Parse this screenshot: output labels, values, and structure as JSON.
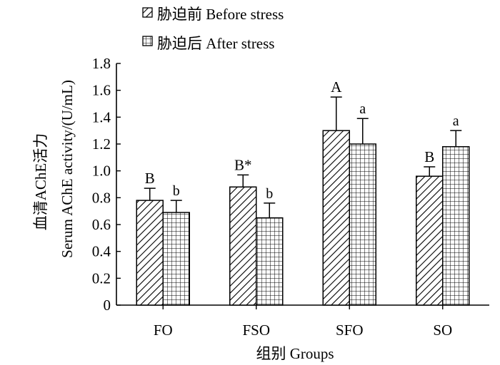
{
  "chart_data": {
    "type": "bar",
    "categories": [
      "FO",
      "FSO",
      "SFO",
      "SO"
    ],
    "series": [
      {
        "name": "胁迫前 Before stress",
        "values": [
          0.78,
          0.88,
          1.3,
          0.96
        ],
        "errors": [
          0.09,
          0.09,
          0.25,
          0.07
        ],
        "labels": [
          "B",
          "B*",
          "A",
          "B"
        ],
        "pattern": "diagonal-hatch"
      },
      {
        "name": "胁迫后 After stress",
        "values": [
          0.69,
          0.65,
          1.2,
          1.18
        ],
        "errors": [
          0.09,
          0.11,
          0.19,
          0.12
        ],
        "labels": [
          "b",
          "b",
          "a",
          "a"
        ],
        "pattern": "grid-hatch"
      }
    ],
    "xlabel": "组别  Groups",
    "ylabel_cn": "血清AChE活力",
    "ylabel_en": "Serum AChE activity/(U/mL)",
    "ylim": [
      0,
      1.8
    ],
    "yticks": [
      "0",
      "0.2",
      "0.4",
      "0.6",
      "0.8",
      "1.0",
      "1.2",
      "1.4",
      "1.6",
      "1.8"
    ],
    "legend_position": "top-left",
    "grid": false
  }
}
